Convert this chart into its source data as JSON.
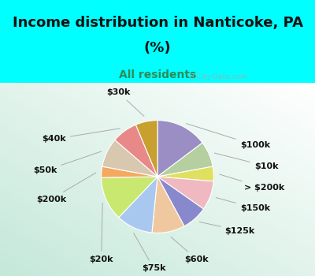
{
  "title_line1": "Income distribution in Nanticoke, PA",
  "title_line2": "(%)",
  "subtitle": "All residents",
  "background_color": "#00FFFF",
  "labels": [
    "$100k",
    "$10k",
    "> $200k",
    "$150k",
    "$125k",
    "$60k",
    "$75k",
    "$20k",
    "$200k",
    "$50k",
    "$40k",
    "$30k"
  ],
  "sizes": [
    14,
    7,
    4,
    8,
    7,
    9,
    10,
    12,
    3,
    8,
    7,
    6
  ],
  "colors": [
    "#9b8ec4",
    "#b5cfa0",
    "#e0e060",
    "#f0b8c0",
    "#8888cc",
    "#f0c8a0",
    "#a8c8f0",
    "#c8e870",
    "#f4a860",
    "#d8c8b0",
    "#e88888",
    "#c8a030"
  ],
  "startangle": 90,
  "title_fontsize": 13,
  "subtitle_fontsize": 10,
  "label_fontsize": 8
}
